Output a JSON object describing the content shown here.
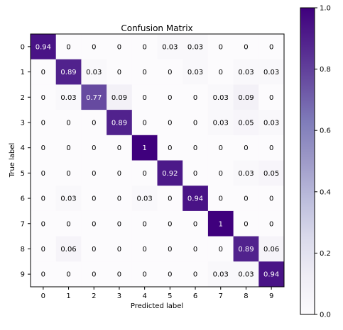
{
  "chart_data": {
    "type": "heatmap",
    "title": "Confusion Matrix",
    "xlabel": "Predicted label",
    "ylabel": "True label",
    "x_categories": [
      "0",
      "1",
      "2",
      "3",
      "4",
      "5",
      "6",
      "7",
      "8",
      "9"
    ],
    "y_categories": [
      "0",
      "1",
      "2",
      "3",
      "4",
      "5",
      "6",
      "7",
      "8",
      "9"
    ],
    "matrix": [
      [
        0.94,
        0.0,
        0.0,
        0.0,
        0.0,
        0.03,
        0.03,
        0.0,
        0.0,
        0.0
      ],
      [
        0.0,
        0.89,
        0.03,
        0.0,
        0.0,
        0.0,
        0.03,
        0.0,
        0.03,
        0.03
      ],
      [
        0.0,
        0.03,
        0.77,
        0.09,
        0.0,
        0.0,
        0.0,
        0.03,
        0.09,
        0.0
      ],
      [
        0.0,
        0.0,
        0.0,
        0.89,
        0.0,
        0.0,
        0.0,
        0.03,
        0.05,
        0.03
      ],
      [
        0.0,
        0.0,
        0.0,
        0.0,
        1.0,
        0.0,
        0.0,
        0.0,
        0.0,
        0.0
      ],
      [
        0.0,
        0.0,
        0.0,
        0.0,
        0.0,
        0.92,
        0.0,
        0.0,
        0.03,
        0.05
      ],
      [
        0.0,
        0.03,
        0.0,
        0.0,
        0.03,
        0.0,
        0.94,
        0.0,
        0.0,
        0.0
      ],
      [
        0.0,
        0.0,
        0.0,
        0.0,
        0.0,
        0.0,
        0.0,
        1.0,
        0.0,
        0.0
      ],
      [
        0.0,
        0.06,
        0.0,
        0.0,
        0.0,
        0.0,
        0.0,
        0.0,
        0.89,
        0.06
      ],
      [
        0.0,
        0.0,
        0.0,
        0.0,
        0.0,
        0.0,
        0.0,
        0.03,
        0.03,
        0.94
      ]
    ],
    "colormap": "Purples",
    "colorbar": {
      "range": [
        0.0,
        1.0
      ],
      "ticks": [
        "0.0",
        "0.2",
        "0.4",
        "0.6",
        "0.8",
        "1.0"
      ]
    },
    "grid": false
  },
  "colors": {
    "low": "#fcfbfd",
    "mid": "#9e9ac8",
    "high": "#3f007d"
  }
}
